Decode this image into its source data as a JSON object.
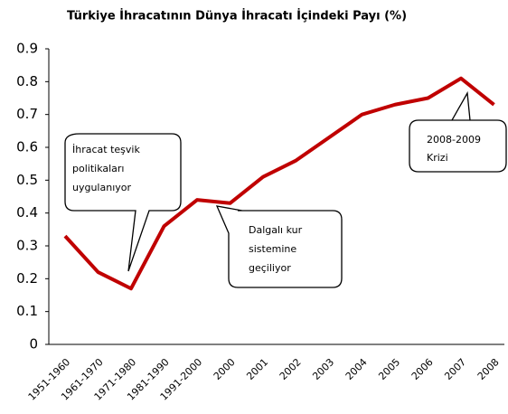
{
  "chart_data": {
    "type": "line",
    "title": "Türkiye İhracatının Dünya İhracatı İçindeki Payı (%)",
    "categories": [
      "1951-1960",
      "1961-1970",
      "1971-1980",
      "1981-1990",
      "1991-2000",
      "2000",
      "2001",
      "2002",
      "2003",
      "2004",
      "2005",
      "2006",
      "2007",
      "2008"
    ],
    "values": [
      0.33,
      0.22,
      0.17,
      0.36,
      0.44,
      0.43,
      0.51,
      0.56,
      0.63,
      0.7,
      0.73,
      0.75,
      0.81,
      0.73
    ],
    "color": "#c00000",
    "ylim": [
      0,
      0.9
    ],
    "yticks": [
      0,
      0.1,
      0.2,
      0.3,
      0.4,
      0.5,
      0.6,
      0.7,
      0.8,
      0.9
    ],
    "annotations": [
      [
        "İhracat teşvik",
        "politikaları",
        "uygulanıyor"
      ],
      [
        "Dalgalı kur",
        "sistemine",
        "geçiliyor"
      ],
      [
        "2008-2009",
        "Krizi"
      ]
    ]
  }
}
